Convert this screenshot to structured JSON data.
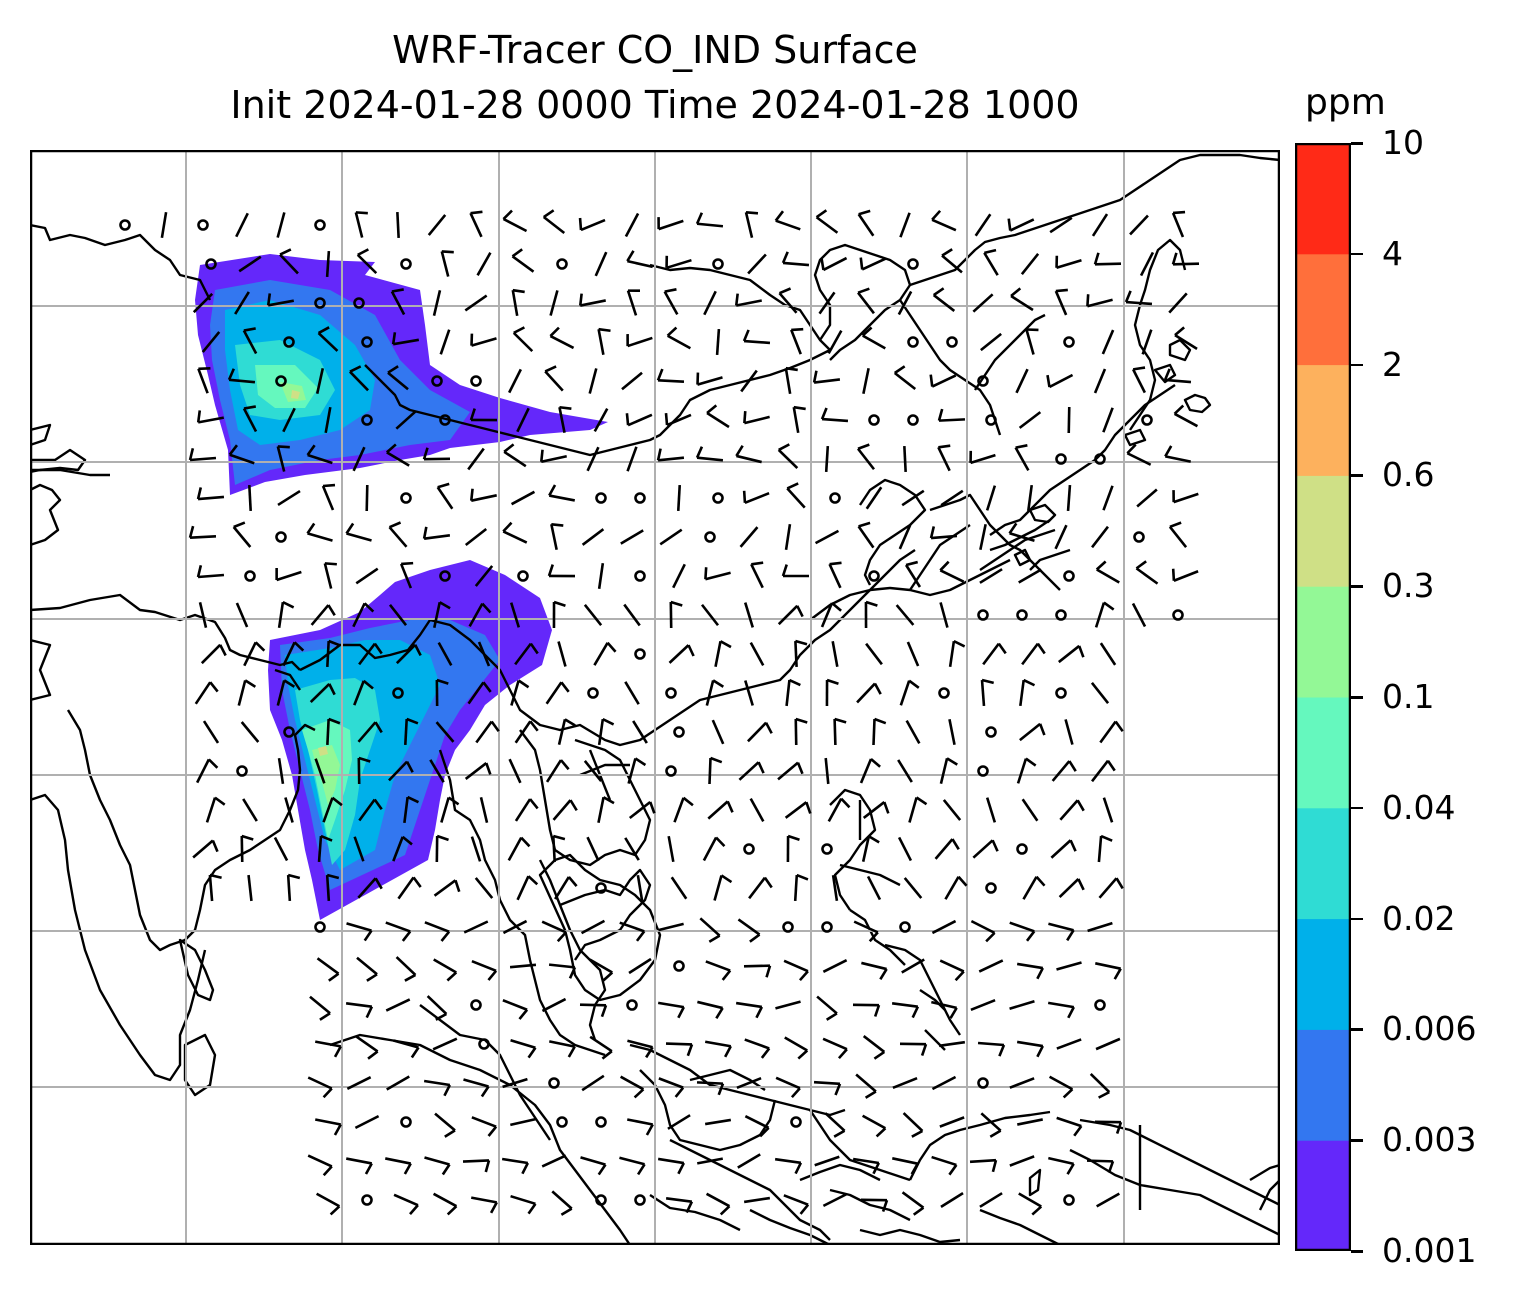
{
  "title": {
    "line1": "WRF-Tracer CO_IND Surface",
    "line2": "Init 2024-01-28 0000 Time 2024-01-28 1000"
  },
  "colorbar": {
    "units": "ppm",
    "tick_labels": [
      "0.001",
      "0.003",
      "0.006",
      "0.02",
      "0.04",
      "0.1",
      "0.3",
      "0.6",
      "2",
      "4",
      "10"
    ],
    "bin_colors": [
      "#6428fa",
      "#3377f0",
      "#00b0ea",
      "#2fdcd4",
      "#65f8be",
      "#93f896",
      "#cfe086",
      "#fdb15d",
      "#ff6f3b",
      "#ff2a17"
    ]
  },
  "map": {
    "gridlines": "on",
    "plume_colors": {
      "outer": "#6428fa",
      "mid": "#3377f0",
      "inner": "#00b0ea",
      "core": "#2fdcd4",
      "high": "#65f8be",
      "peak": "#93f896",
      "max": "#cfe086"
    },
    "wind_symbols": "wind barbs and calm circles"
  }
}
